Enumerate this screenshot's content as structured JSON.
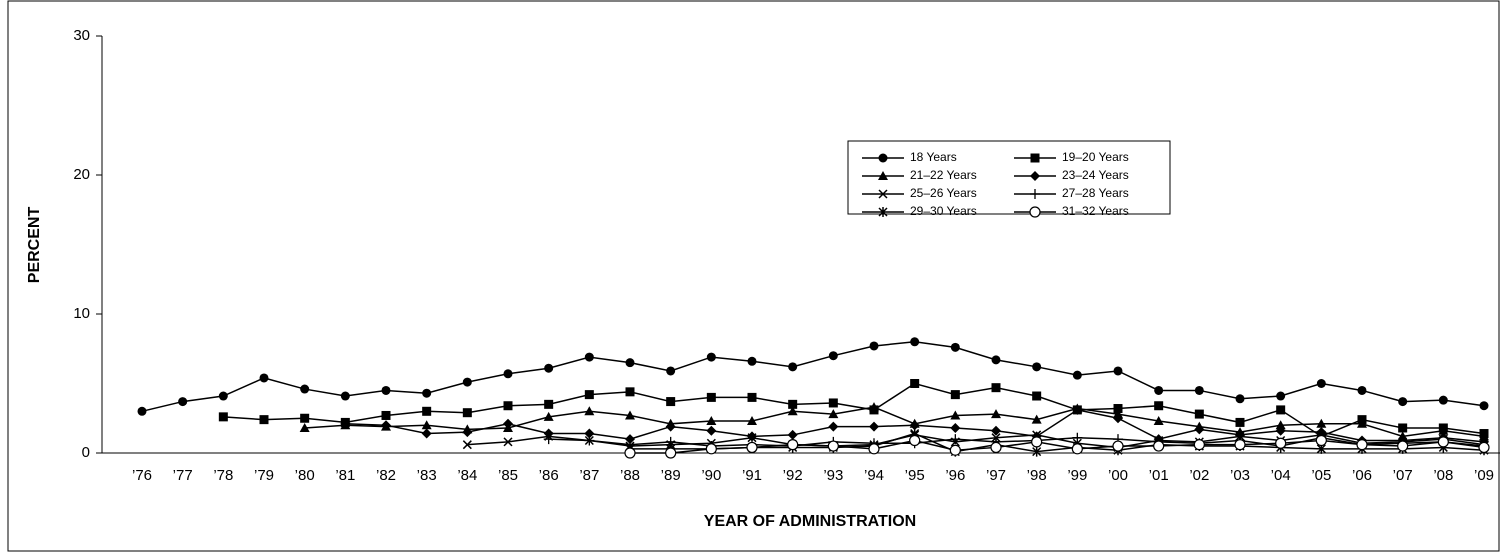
{
  "chart_data": {
    "type": "line",
    "xlabel": "YEAR OF ADMINISTRATION",
    "ylabel": "PERCENT",
    "categories": [
      "’76",
      "’77",
      "’78",
      "’79",
      "’80",
      "’81",
      "’82",
      "’83",
      "’84",
      "’85",
      "’86",
      "’87",
      "’88",
      "’89",
      "’90",
      "’91",
      "’92",
      "’93",
      "’94",
      "’95",
      "’96",
      "’97",
      "’98",
      "’99",
      "’00",
      "’01",
      "’02",
      "’03",
      "’04",
      "’05",
      "’06",
      "’07",
      "’08",
      "’09"
    ],
    "ylim": [
      0,
      30
    ],
    "yticks": [
      0,
      10,
      20,
      30
    ],
    "series": [
      {
        "name": "18 Years",
        "color": "#000000",
        "marker": "circle",
        "values": [
          3.0,
          3.7,
          4.1,
          5.4,
          4.6,
          4.1,
          4.5,
          4.3,
          5.1,
          5.7,
          6.1,
          6.9,
          6.5,
          5.9,
          6.9,
          6.6,
          6.2,
          7.0,
          7.7,
          8.0,
          7.6,
          6.7,
          6.2,
          5.6,
          5.9,
          4.5,
          4.5,
          3.9,
          4.1,
          5.0,
          4.5,
          3.7,
          3.8,
          3.4
        ]
      },
      {
        "name": "19–20 Years",
        "color": "#000000",
        "marker": "square",
        "values": [
          null,
          null,
          2.6,
          2.4,
          2.5,
          2.2,
          2.7,
          3.0,
          2.9,
          3.4,
          3.5,
          4.2,
          4.4,
          3.7,
          4.0,
          4.0,
          3.5,
          3.6,
          3.1,
          5.0,
          4.2,
          4.7,
          4.1,
          3.1,
          3.2,
          3.4,
          2.8,
          2.2,
          3.1,
          1.2,
          2.4,
          1.8,
          1.8,
          1.4
        ]
      },
      {
        "name": "21–22 Years",
        "color": "#000000",
        "marker": "triangle",
        "values": [
          null,
          null,
          null,
          null,
          1.8,
          2.0,
          1.9,
          2.0,
          1.7,
          1.8,
          2.6,
          3.0,
          2.7,
          2.1,
          2.3,
          2.3,
          3.0,
          2.8,
          3.3,
          2.1,
          2.7,
          2.8,
          2.4,
          3.2,
          2.8,
          2.3,
          1.9,
          1.5,
          2.0,
          2.1,
          2.1,
          1.2,
          1.6,
          1.2
        ]
      },
      {
        "name": "23–24 Years",
        "color": "#000000",
        "marker": "diamond",
        "values": [
          null,
          null,
          null,
          null,
          null,
          2.1,
          2.0,
          1.4,
          1.5,
          2.1,
          1.4,
          1.4,
          1.0,
          1.9,
          1.6,
          1.2,
          1.3,
          1.9,
          1.9,
          2.0,
          1.8,
          1.6,
          1.2,
          3.1,
          2.5,
          1.0,
          1.7,
          1.3,
          1.6,
          1.5,
          0.9,
          0.9,
          1.1,
          0.8
        ]
      },
      {
        "name": "25–26 Years",
        "color": "#000000",
        "marker": "x",
        "values": [
          null,
          null,
          null,
          null,
          null,
          null,
          null,
          null,
          0.6,
          0.8,
          1.2,
          0.9,
          0.5,
          0.6,
          0.7,
          1.1,
          0.6,
          0.5,
          0.6,
          1.3,
          0.8,
          1.1,
          1.3,
          0.7,
          0.4,
          0.9,
          0.8,
          1.2,
          0.9,
          1.3,
          0.7,
          0.8,
          1.0,
          0.6
        ]
      },
      {
        "name": "27–28 Years",
        "color": "#000000",
        "marker": "plus",
        "values": [
          null,
          null,
          null,
          null,
          null,
          null,
          null,
          null,
          null,
          null,
          1.0,
          0.9,
          0.6,
          0.8,
          0.5,
          0.6,
          0.5,
          0.8,
          0.7,
          0.7,
          1.0,
          0.8,
          0.9,
          1.1,
          1.0,
          0.8,
          0.7,
          0.9,
          0.5,
          1.1,
          0.6,
          0.7,
          0.8,
          0.5
        ]
      },
      {
        "name": "29–30 Years",
        "color": "#000000",
        "marker": "asterisk",
        "values": [
          null,
          null,
          null,
          null,
          null,
          null,
          null,
          null,
          null,
          null,
          null,
          null,
          0.3,
          0.3,
          0.3,
          0.4,
          0.4,
          0.4,
          0.5,
          1.4,
          0.1,
          0.6,
          0.1,
          0.4,
          0.2,
          0.6,
          0.5,
          0.5,
          0.4,
          0.3,
          0.3,
          0.3,
          0.4,
          0.2
        ]
      },
      {
        "name": "31–32 Years",
        "color": "#000000",
        "marker": "open-circle",
        "values": [
          null,
          null,
          null,
          null,
          null,
          null,
          null,
          null,
          null,
          null,
          null,
          null,
          0.0,
          0.0,
          0.3,
          0.4,
          0.6,
          0.5,
          0.3,
          0.9,
          0.2,
          0.4,
          0.8,
          0.3,
          0.5,
          0.5,
          0.6,
          0.6,
          0.7,
          0.9,
          0.6,
          0.5,
          0.8,
          0.4
        ]
      }
    ]
  }
}
